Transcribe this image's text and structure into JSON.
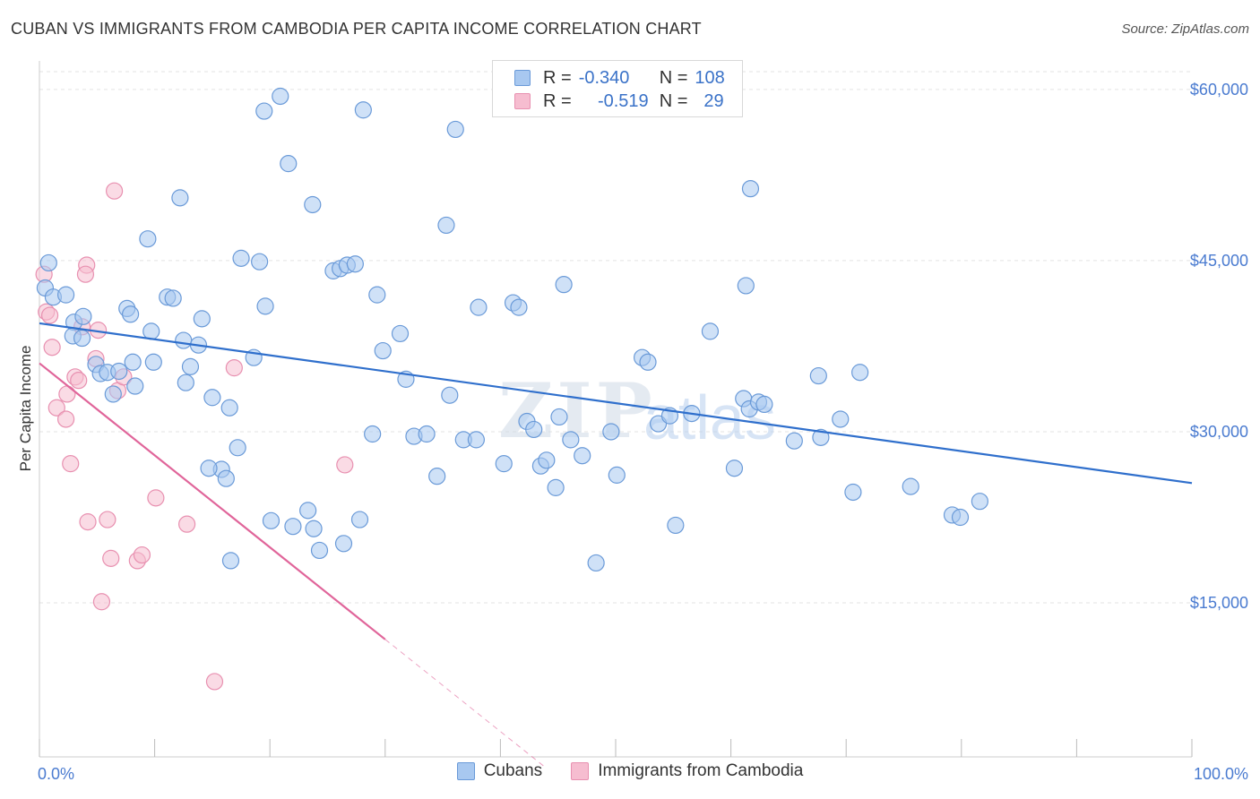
{
  "title": "CUBAN VS IMMIGRANTS FROM CAMBODIA PER CAPITA INCOME CORRELATION CHART",
  "source": "Source: ZipAtlas.com",
  "colors": {
    "cubans_fill": "#a8c8f0",
    "cubans_stroke": "#6a9ad8",
    "cubans_line": "#2f6fcc",
    "cambodia_fill": "#f6bdd0",
    "cambodia_stroke": "#e890b0",
    "cambodia_line": "#e0659a",
    "grid": "#e3e3e3",
    "axis_text": "#4a7bd0"
  },
  "legend": {
    "rows": [
      {
        "r_label": "R =",
        "r_value": "-0.340",
        "n_label": "N =",
        "n_value": "108"
      },
      {
        "r_label": "R =",
        "r_value": "-0.519",
        "n_label": "N =",
        "n_value": "29"
      }
    ]
  },
  "bottom_legend": {
    "cubans": "Cubans",
    "cambodia": "Immigrants from Cambodia"
  },
  "chart_data": {
    "type": "scatter",
    "title": "CUBAN VS IMMIGRANTS FROM CAMBODIA PER CAPITA INCOME CORRELATION CHART",
    "xlabel": "",
    "ylabel": "Per Capita Income",
    "xlim": [
      0,
      100
    ],
    "ylim": [
      1500,
      62500
    ],
    "x_tick_labels": [
      "0.0%",
      "100.0%"
    ],
    "y_ticks": [
      15000,
      30000,
      45000,
      60000
    ],
    "y_tick_labels": [
      "$15,000",
      "$30,000",
      "$45,000",
      "$60,000"
    ],
    "grid": true,
    "legend_position": "top-center",
    "watermark": "ZIPatlas",
    "series": [
      {
        "name": "Cubans",
        "r": -0.34,
        "n": 108,
        "trend": {
          "x": [
            0,
            100
          ],
          "y": [
            39500,
            25500
          ]
        },
        "points": [
          [
            0.8,
            44800
          ],
          [
            0.5,
            42600
          ],
          [
            1.2,
            41800
          ],
          [
            2.3,
            42000
          ],
          [
            3.0,
            39600
          ],
          [
            3.8,
            40100
          ],
          [
            2.9,
            38400
          ],
          [
            3.7,
            38200
          ],
          [
            4.9,
            35900
          ],
          [
            5.3,
            35100
          ],
          [
            5.9,
            35200
          ],
          [
            6.9,
            35300
          ],
          [
            6.4,
            33300
          ],
          [
            8.3,
            34000
          ],
          [
            8.1,
            36100
          ],
          [
            9.9,
            36100
          ],
          [
            7.6,
            40800
          ],
          [
            7.9,
            40300
          ],
          [
            9.7,
            38800
          ],
          [
            11.1,
            41800
          ],
          [
            11.6,
            41700
          ],
          [
            12.5,
            38000
          ],
          [
            12.7,
            34300
          ],
          [
            13.1,
            35700
          ],
          [
            13.8,
            37600
          ],
          [
            14.1,
            39900
          ],
          [
            15.0,
            33000
          ],
          [
            9.4,
            46900
          ],
          [
            12.2,
            50500
          ],
          [
            17.5,
            45200
          ],
          [
            19.1,
            44900
          ],
          [
            19.6,
            41000
          ],
          [
            16.5,
            32100
          ],
          [
            17.2,
            28600
          ],
          [
            15.8,
            26700
          ],
          [
            16.2,
            25900
          ],
          [
            14.7,
            26800
          ],
          [
            16.6,
            18700
          ],
          [
            18.6,
            36500
          ],
          [
            20.1,
            22200
          ],
          [
            22.0,
            21700
          ],
          [
            23.3,
            23100
          ],
          [
            23.8,
            21500
          ],
          [
            24.3,
            19600
          ],
          [
            26.4,
            20200
          ],
          [
            27.8,
            22300
          ],
          [
            19.5,
            58100
          ],
          [
            20.9,
            59400
          ],
          [
            21.6,
            53500
          ],
          [
            23.7,
            49900
          ],
          [
            25.5,
            44100
          ],
          [
            26.1,
            44300
          ],
          [
            26.7,
            44600
          ],
          [
            27.4,
            44700
          ],
          [
            28.1,
            58200
          ],
          [
            29.3,
            42000
          ],
          [
            29.8,
            37100
          ],
          [
            28.9,
            29800
          ],
          [
            31.3,
            38600
          ],
          [
            31.8,
            34600
          ],
          [
            32.5,
            29600
          ],
          [
            33.6,
            29800
          ],
          [
            34.5,
            26100
          ],
          [
            35.6,
            33200
          ],
          [
            35.3,
            48100
          ],
          [
            36.1,
            56500
          ],
          [
            36.8,
            29300
          ],
          [
            37.9,
            29300
          ],
          [
            38.1,
            40900
          ],
          [
            40.3,
            27200
          ],
          [
            41.1,
            41300
          ],
          [
            41.6,
            40900
          ],
          [
            42.3,
            30900
          ],
          [
            42.9,
            30200
          ],
          [
            43.5,
            27000
          ],
          [
            44.0,
            27500
          ],
          [
            44.8,
            25100
          ],
          [
            45.1,
            31300
          ],
          [
            45.5,
            42900
          ],
          [
            46.1,
            29300
          ],
          [
            47.1,
            27900
          ],
          [
            48.3,
            18500
          ],
          [
            49.6,
            30000
          ],
          [
            50.1,
            26200
          ],
          [
            52.3,
            36500
          ],
          [
            52.8,
            36100
          ],
          [
            53.7,
            30700
          ],
          [
            54.7,
            31400
          ],
          [
            55.2,
            21800
          ],
          [
            56.6,
            31600
          ],
          [
            58.2,
            38800
          ],
          [
            60.3,
            26800
          ],
          [
            61.1,
            32900
          ],
          [
            61.6,
            32000
          ],
          [
            62.4,
            32600
          ],
          [
            62.9,
            32400
          ],
          [
            61.7,
            51300
          ],
          [
            61.3,
            42800
          ],
          [
            65.5,
            29200
          ],
          [
            67.6,
            34900
          ],
          [
            67.8,
            29500
          ],
          [
            69.5,
            31100
          ],
          [
            70.6,
            24700
          ],
          [
            71.2,
            35200
          ],
          [
            75.6,
            25200
          ],
          [
            79.2,
            22700
          ],
          [
            79.9,
            22500
          ],
          [
            81.6,
            23900
          ]
        ]
      },
      {
        "name": "Immigrants from Cambodia",
        "r": -0.519,
        "n": 29,
        "trend": {
          "x": [
            0,
            30
          ],
          "y": [
            36000,
            11800
          ]
        },
        "trend_dashed": {
          "x": [
            30,
            44
          ],
          "y": [
            11800,
            500
          ]
        },
        "points": [
          [
            0.4,
            43800
          ],
          [
            0.6,
            40500
          ],
          [
            0.9,
            40200
          ],
          [
            1.1,
            37400
          ],
          [
            1.5,
            32100
          ],
          [
            2.3,
            31100
          ],
          [
            2.4,
            33300
          ],
          [
            2.7,
            27200
          ],
          [
            3.1,
            34800
          ],
          [
            3.4,
            34500
          ],
          [
            3.7,
            39200
          ],
          [
            4.1,
            44600
          ],
          [
            4.0,
            43800
          ],
          [
            4.2,
            22100
          ],
          [
            4.9,
            36400
          ],
          [
            5.1,
            38900
          ],
          [
            5.4,
            15100
          ],
          [
            5.9,
            22300
          ],
          [
            6.2,
            18900
          ],
          [
            6.5,
            51100
          ],
          [
            6.8,
            33600
          ],
          [
            7.3,
            34800
          ],
          [
            8.5,
            18700
          ],
          [
            8.9,
            19200
          ],
          [
            10.1,
            24200
          ],
          [
            12.8,
            21900
          ],
          [
            15.2,
            8100
          ],
          [
            16.9,
            35600
          ],
          [
            26.5,
            27100
          ]
        ]
      }
    ]
  }
}
